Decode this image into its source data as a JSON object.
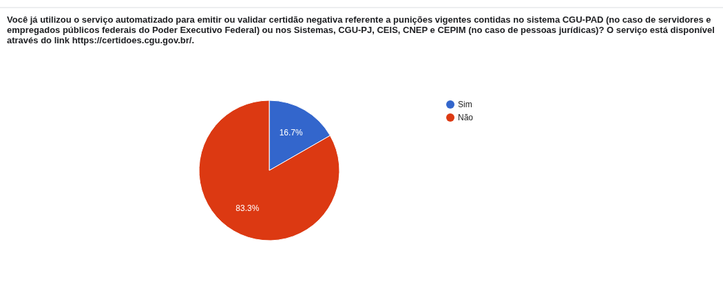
{
  "chart_data": {
    "type": "pie",
    "title": "Você já utilizou o serviço automatizado para emitir ou validar certidão negativa referente a punições vigentes contidas no sistema CGU-PAD (no caso de servidores e empregados públicos federais do Poder Executivo Federal) ou nos Sistemas, CGU-PJ, CEIS, CNEP e CEPIM (no caso de pessoas jurídicas)? O serviço está disponível através do link https://certidoes.cgu.gov.br/.",
    "categories": [
      "Sim",
      "Não"
    ],
    "values": [
      16.7,
      83.3
    ],
    "colors": [
      "#3366cc",
      "#dc3912"
    ],
    "value_labels": [
      "16.7%",
      "83.3%"
    ],
    "legend": "right"
  }
}
